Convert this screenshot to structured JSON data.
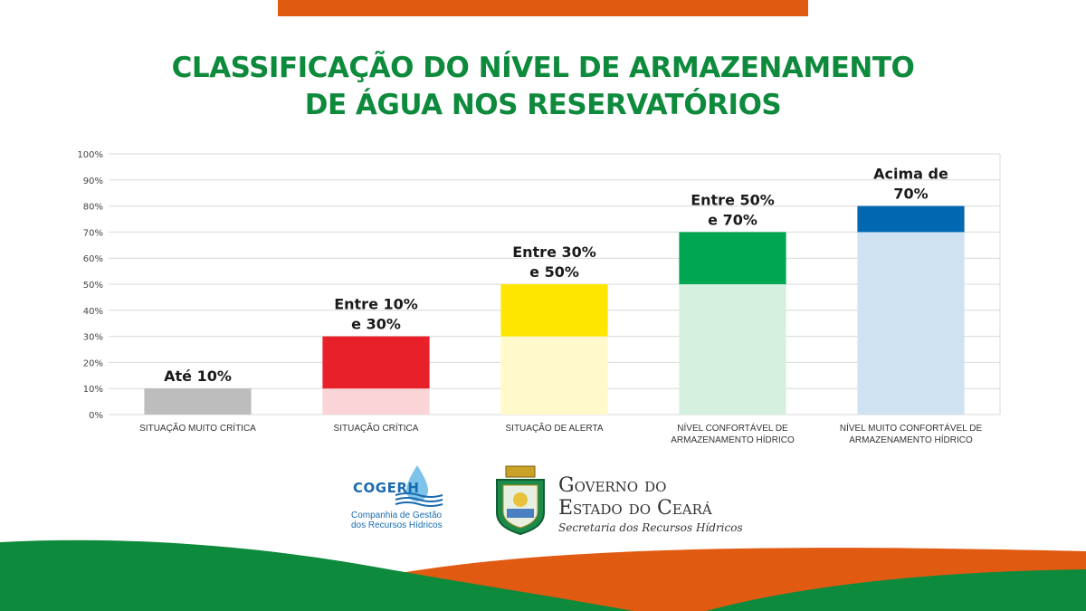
{
  "header": {
    "title_line1": "CLASSIFICAÇÃO DO NÍVEL DE ARMAZENAMENTO",
    "title_line2": "DE ÁGUA NOS RESERVATÓRIOS"
  },
  "chart_data": {
    "type": "bar",
    "categories": [
      "SITUAÇÃO MUITO CRÍTICA",
      "SITUAÇÃO CRÍTICA",
      "SITUAÇÃO DE ALERTA",
      "NÍVEL CONFORTÁVEL DE ARMAZENAMENTO HÍDRICO",
      "NÍVEL MUITO CONFORTÁVEL DE ARMAZENAMENTO HÍDRICO"
    ],
    "ranges": [
      [
        0,
        10
      ],
      [
        10,
        30
      ],
      [
        30,
        50
      ],
      [
        50,
        70
      ],
      [
        70,
        80
      ]
    ],
    "data_labels": [
      "Até 10%",
      "Entre 10% e 30%",
      "Entre 30% e 50%",
      "Entre 50% e 70%",
      "Acima de 70%"
    ],
    "colors": [
      "#bdbdbd",
      "#e8202a",
      "#ffe600",
      "#00a651",
      "#0067b1"
    ],
    "light_colors": [
      "#bdbdbd",
      "#fad4d6",
      "#fff9cc",
      "#d5f0de",
      "#cfe2f1"
    ],
    "yticks": [
      "0%",
      "10%",
      "20%",
      "30%",
      "40%",
      "50%",
      "60%",
      "70%",
      "80%",
      "90%",
      "100%"
    ],
    "ylim": [
      0,
      100
    ],
    "grid": true
  },
  "logos": {
    "cogerh_name": "COGERH",
    "cogerh_subtitle": "Companhia de Gestão dos Recursos Hídricos",
    "gov_line1": "Governo do",
    "gov_line2": "Estado do Ceará",
    "gov_subtitle": "Secretaria dos Recursos Hídricos"
  }
}
